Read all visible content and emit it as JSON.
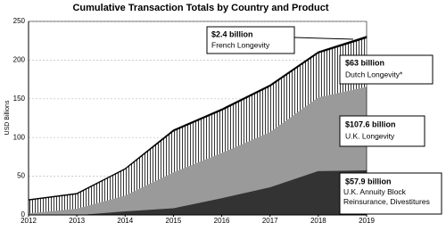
{
  "chart_data": {
    "type": "stacked-area",
    "title": "Cumulative Transaction Totals by Country and Product",
    "y_label": "USD Billions",
    "x": [
      2012,
      2013,
      2014,
      2015,
      2016,
      2017,
      2018,
      2019
    ],
    "xlim": [
      2012,
      2019
    ],
    "xticks": [
      2012,
      2013,
      2014,
      2015,
      2016,
      2017,
      2018,
      2019
    ],
    "ylim": [
      0,
      250
    ],
    "yticks": [
      0,
      50,
      100,
      150,
      200,
      250
    ],
    "grid": true,
    "series": [
      {
        "name": "U.K. Annuity Block Reinsurance, Divestitures",
        "color": "#333333",
        "values": [
          0,
          0,
          5,
          9,
          22,
          36,
          57,
          57.9
        ],
        "value_labels": [
          null,
          null,
          null,
          null,
          null,
          null,
          null,
          "$57.9 billion"
        ]
      },
      {
        "name": "U.K. Longevity",
        "color": "#9a9a9a",
        "values": [
          2,
          8,
          20,
          46,
          58,
          71,
          95,
          107.6
        ],
        "value_labels": [
          null,
          null,
          null,
          null,
          null,
          null,
          null,
          "$107.6 billion"
        ]
      },
      {
        "name": "Dutch Longevity*",
        "color": "stripes",
        "values": [
          17,
          19,
          34,
          53,
          55,
          59,
          57,
          63
        ],
        "value_labels": [
          null,
          null,
          null,
          null,
          null,
          null,
          null,
          "$63 billion"
        ]
      },
      {
        "name": "French Longevity",
        "color": "#000000",
        "values": [
          1,
          1,
          1,
          2,
          2,
          2,
          2,
          2.4
        ],
        "value_labels": [
          null,
          null,
          null,
          null,
          null,
          null,
          null,
          "$2.4 billion"
        ]
      }
    ]
  }
}
